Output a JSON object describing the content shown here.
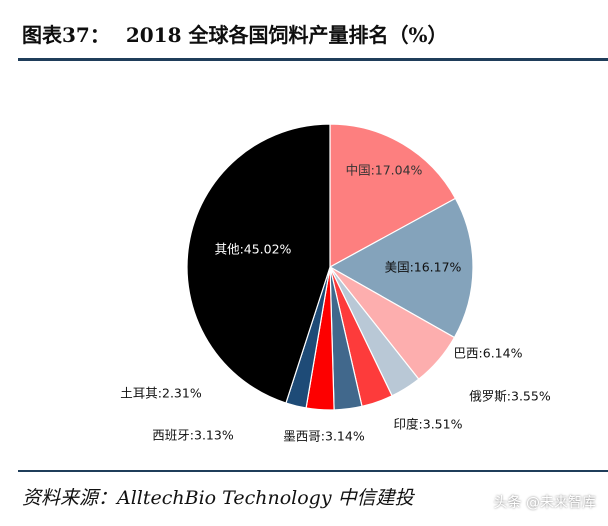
{
  "figure": {
    "number_label": "图表37：",
    "title": "2018 全球各国饲料产量排名（%）",
    "source": "资料来源：AlltechBio Technology  中信建投",
    "watermark": "头条 @未来智库"
  },
  "chart_data": {
    "type": "pie",
    "title": "2018 全球各国饲料产量排名（%）",
    "unit": "%",
    "start": "12 o'clock",
    "direction": "clockwise",
    "slices": [
      {
        "label": "中国",
        "value": 17.04,
        "color": "#fd7f7f",
        "display": "中国:17.04%"
      },
      {
        "label": "美国",
        "value": 16.17,
        "color": "#84a3bb",
        "display": "美国:16.17%"
      },
      {
        "label": "巴西",
        "value": 6.14,
        "color": "#fdaeae",
        "display": "巴西:6.14%"
      },
      {
        "label": "印度",
        "value": 3.51,
        "color": "#b9c8d6",
        "display": "印度:3.51%"
      },
      {
        "label": "俄罗斯",
        "value": 3.55,
        "color": "#fd3b3b",
        "display": "俄罗斯:3.55%"
      },
      {
        "label": "墨西哥",
        "value": 3.14,
        "color": "#41688c",
        "display": "墨西哥:3.14%"
      },
      {
        "label": "西班牙",
        "value": 3.13,
        "color": "#fd0000",
        "display": "西班牙:3.13%"
      },
      {
        "label": "土耳其",
        "value": 2.31,
        "color": "#1e4b77",
        "display": "土耳其:2.31%"
      },
      {
        "label": "其他",
        "value": 45.02,
        "color": "#000000",
        "display": "其他:45.02%"
      }
    ]
  }
}
